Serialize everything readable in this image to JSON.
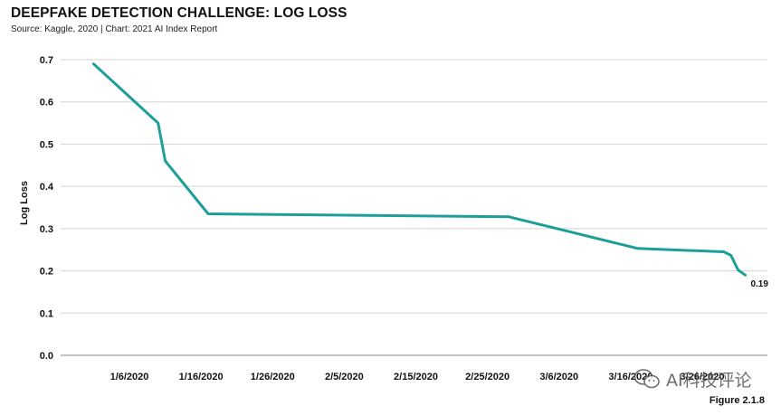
{
  "header": {
    "title": "DEEPFAKE DETECTION CHALLENGE: LOG LOSS",
    "source": "Source: Kaggle, 2020 | Chart: 2021 AI Index Report"
  },
  "footer": {
    "figure_label": "Figure 2.1.8"
  },
  "watermark": {
    "text": "AI科技评论",
    "icon": "wechat-icon"
  },
  "colors": {
    "line": "#1d9e9a",
    "grid": "#d4d4d4",
    "axis": "#888888"
  },
  "chart_data": {
    "type": "line",
    "title": "DEEPFAKE DETECTION CHALLENGE: LOG LOSS",
    "xlabel": "",
    "ylabel": "Log Loss",
    "x_ticks": [
      "1/6/2020",
      "1/16/2020",
      "1/26/2020",
      "2/5/2020",
      "2/15/2020",
      "2/25/2020",
      "3/6/2020",
      "3/16/2020",
      "3/26/2020"
    ],
    "x_range": [
      "2019-12-28",
      "2020-04-01"
    ],
    "ylim": [
      0,
      0.7
    ],
    "y_ticks": [
      0.0,
      0.1,
      0.2,
      0.3,
      0.4,
      0.5,
      0.6,
      0.7
    ],
    "grid": true,
    "legend": "none",
    "series": [
      {
        "points": [
          {
            "date": "2020-01-01",
            "value": 0.69
          },
          {
            "date": "2020-01-10",
            "value": 0.55
          },
          {
            "date": "2020-01-11",
            "value": 0.46
          },
          {
            "date": "2020-01-17",
            "value": 0.335
          },
          {
            "date": "2020-02-28",
            "value": 0.328
          },
          {
            "date": "2020-03-17",
            "value": 0.253
          },
          {
            "date": "2020-03-29",
            "value": 0.245
          },
          {
            "date": "2020-03-30",
            "value": 0.237
          },
          {
            "date": "2020-03-31",
            "value": 0.202
          },
          {
            "date": "2020-04-01",
            "value": 0.19
          }
        ]
      }
    ],
    "annotations": [
      {
        "text": "0.19",
        "date": "2020-04-01",
        "value": 0.19
      }
    ]
  }
}
